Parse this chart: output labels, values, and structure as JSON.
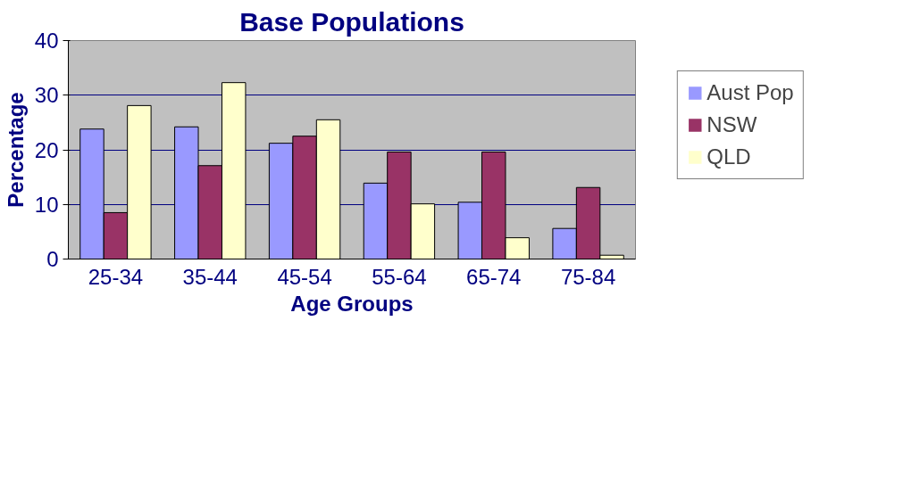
{
  "chart_data": {
    "type": "bar",
    "title": "Base Populations",
    "xlabel": "Age Groups",
    "ylabel": "Percentage",
    "categories": [
      "25-34",
      "35-44",
      "45-54",
      "55-64",
      "65-74",
      "75-84"
    ],
    "series": [
      {
        "name": "Aust Pop",
        "color": "#9999ff",
        "values": [
          23.8,
          24.2,
          21.2,
          13.9,
          10.4,
          5.6
        ]
      },
      {
        "name": "NSW",
        "color": "#993366",
        "values": [
          8.5,
          17.1,
          22.5,
          19.6,
          19.6,
          13.1
        ]
      },
      {
        "name": "QLD",
        "color": "#ffffcc",
        "values": [
          28.1,
          32.3,
          25.5,
          10.1,
          3.9,
          0.7
        ]
      }
    ],
    "ylim": [
      0,
      40
    ],
    "yticks": [
      0,
      10,
      20,
      30,
      40
    ],
    "grid": "y",
    "legend": "right"
  }
}
